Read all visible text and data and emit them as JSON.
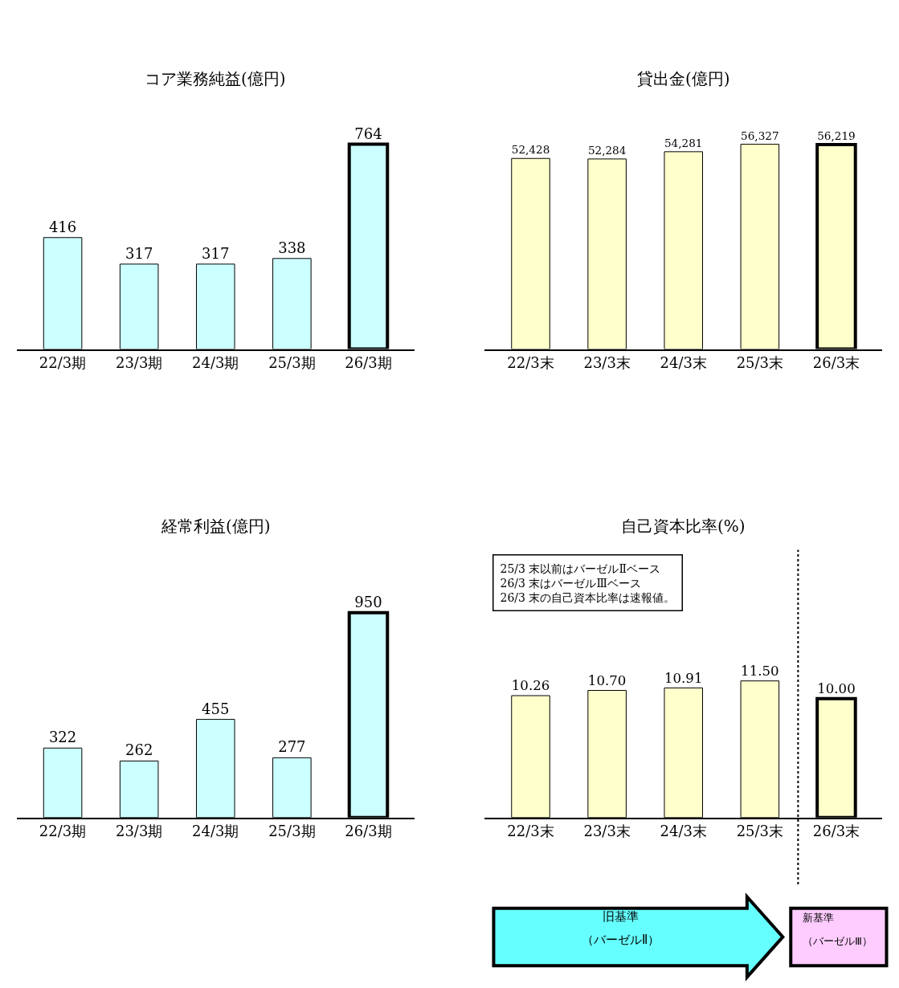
{
  "chart_data": [
    {
      "type": "bar",
      "title": "コア業務純益(億円)",
      "categories": [
        "22/3期",
        "23/3期",
        "24/3期",
        "25/3期",
        "26/3期"
      ],
      "values": [
        416,
        317,
        317,
        338,
        764
      ],
      "color": "#ccffff",
      "data_labels": true
    },
    {
      "type": "bar",
      "title": "貸出金(億円)",
      "categories": [
        "22/3末",
        "23/3末",
        "24/3末",
        "25/3末",
        "26/3末"
      ],
      "values": [
        52428,
        52284,
        54281,
        56327,
        56219
      ],
      "color": "#ffffcc",
      "value_labels": [
        "52,428",
        "52,284",
        "54,281",
        "56,327",
        "56,219"
      ]
    },
    {
      "type": "bar",
      "title": "経常利益(億円)",
      "categories": [
        "22/3期",
        "23/3期",
        "24/3期",
        "25/3期",
        "26/3期"
      ],
      "values": [
        322,
        262,
        455,
        277,
        950
      ],
      "color": "#ccffff",
      "data_labels": true
    },
    {
      "type": "bar",
      "title": "自己資本比率(%)",
      "categories": [
        "22/3末",
        "23/3末",
        "24/3末",
        "25/3末",
        "26/3末"
      ],
      "values": [
        10.26,
        10.7,
        10.91,
        11.5,
        10.0
      ],
      "color": "#ffffcc",
      "value_labels": [
        "10.26",
        "10.70",
        "10.91",
        "11.50",
        "10.00"
      ],
      "annotations": [
        "25/3 末以前はバーゼルⅡベース\n26/3 末はバーゼルⅢベース\n26/3 末の自己資本比率は速報値。",
        "旧基準",
        "（バーゼルⅡ）",
        "新基準",
        "（バーゼルⅢ）"
      ]
    }
  ]
}
